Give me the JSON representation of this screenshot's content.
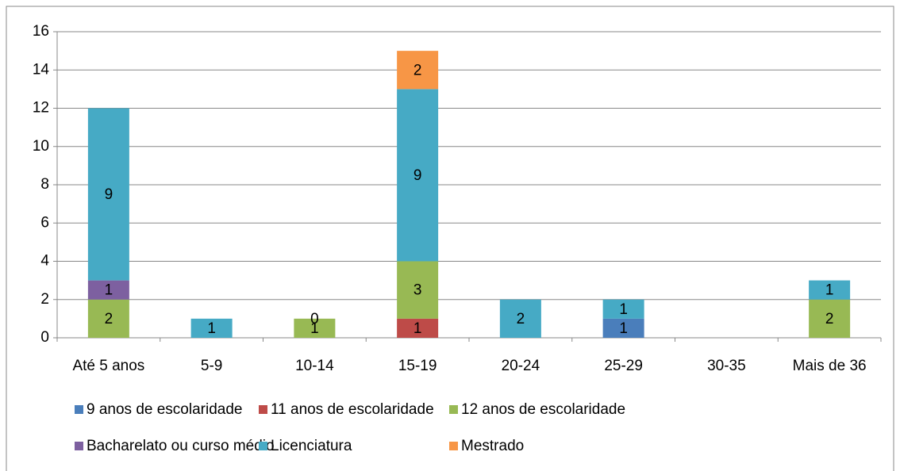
{
  "chart_data": {
    "type": "bar",
    "stacked": true,
    "categories": [
      "Até 5 anos",
      "5-9",
      "10-14",
      "15-19",
      "20-24",
      "25-29",
      "30-35",
      "Mais de 36"
    ],
    "series": [
      {
        "name": "9 anos de escolaridade",
        "color": "#4a7ebb",
        "values": [
          null,
          null,
          null,
          null,
          null,
          1,
          null,
          null
        ]
      },
      {
        "name": "11 anos de escolaridade",
        "color": "#be4b48",
        "values": [
          null,
          null,
          null,
          1,
          null,
          null,
          null,
          null
        ]
      },
      {
        "name": "12 anos de escolaridade",
        "color": "#98b954",
        "values": [
          2,
          null,
          1,
          3,
          null,
          null,
          null,
          2
        ]
      },
      {
        "name": "Bacharelato ou curso médio",
        "color": "#7d60a0",
        "values": [
          1,
          null,
          null,
          null,
          null,
          null,
          null,
          null
        ]
      },
      {
        "name": "Licenciatura",
        "color": "#46aac5",
        "values": [
          9,
          1,
          0,
          9,
          2,
          1,
          null,
          1
        ]
      },
      {
        "name": "Mestrado",
        "color": "#f79646",
        "values": [
          null,
          null,
          null,
          2,
          null,
          null,
          null,
          null
        ]
      }
    ],
    "ylim": [
      0,
      16
    ],
    "yticks": [
      0,
      2,
      4,
      6,
      8,
      10,
      12,
      14,
      16
    ],
    "grid": true,
    "legend": "bottom"
  }
}
